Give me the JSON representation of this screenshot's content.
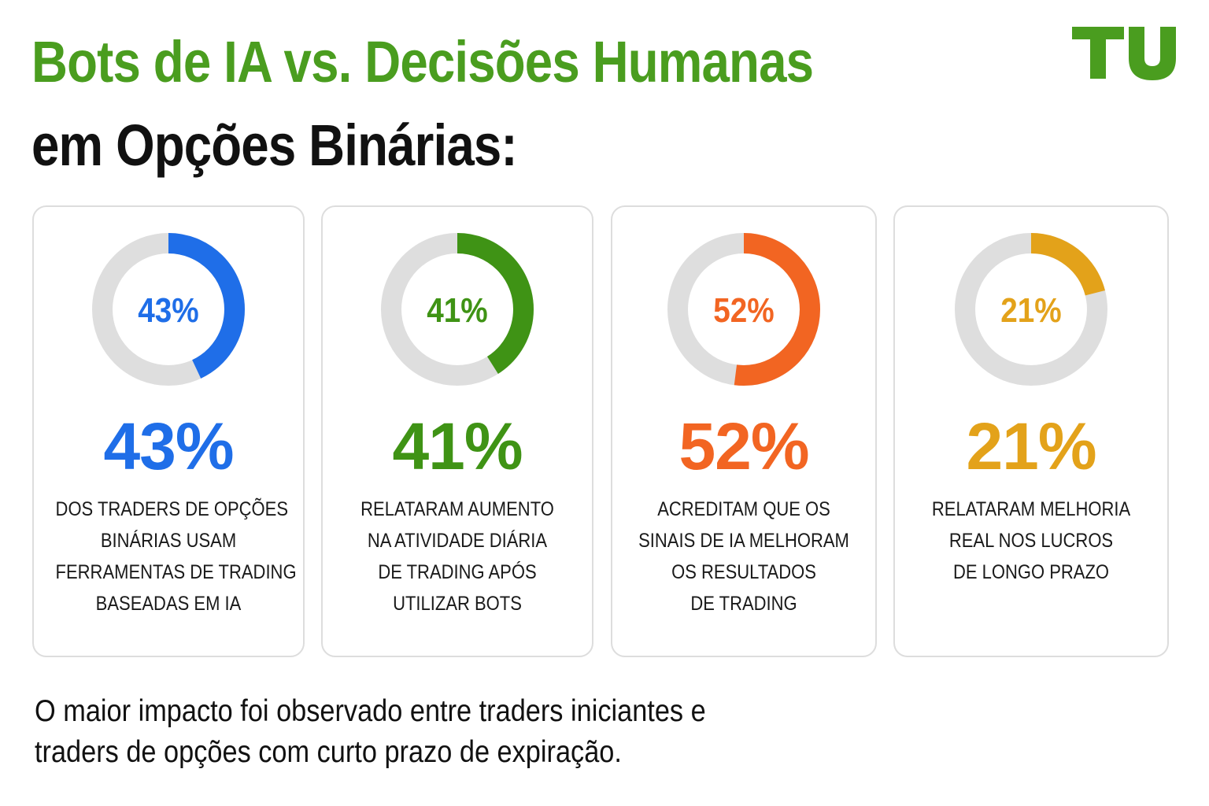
{
  "title_line1": "Bots de IA vs. Decisões Humanas",
  "title_line2": "em Opções Binárias:",
  "logo": {
    "text": "TU",
    "color": "#4a9d1f"
  },
  "colors": {
    "track": "#dedede",
    "title_green": "#4a9d1f"
  },
  "chart_data": {
    "type": "pie",
    "variant": "donut",
    "items": [
      {
        "value": 43,
        "label": "43%",
        "color": "#1f6ee8",
        "description": [
          "DOS TRADERS DE OPÇÕES",
          "BINÁRIAS USAM",
          "FERRAMENTAS DE TRADING",
          "BASEADAS EM IA"
        ]
      },
      {
        "value": 41,
        "label": "41%",
        "color": "#3f9315",
        "description": [
          "RELATARAM AUMENTO",
          "NA ATIVIDADE DIÁRIA",
          "DE TRADING APÓS",
          "UTILIZAR BOTS"
        ]
      },
      {
        "value": 52,
        "label": "52%",
        "color": "#f26522",
        "description": [
          "ACREDITAM QUE OS",
          "SINAIS DE IA MELHORAM",
          "OS RESULTADOS",
          "DE TRADING"
        ]
      },
      {
        "value": 21,
        "label": "21%",
        "color": "#e3a21a",
        "description": [
          "RELATARAM MELHORIA",
          "REAL NOS LUCROS",
          "DE LONGO PRAZO"
        ]
      }
    ]
  },
  "footer": [
    "O maior impacto foi observado entre traders iniciantes e",
    "traders de opções com curto prazo de expiração."
  ]
}
